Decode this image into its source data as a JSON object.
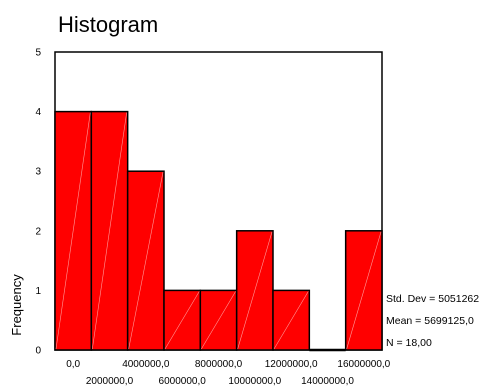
{
  "chart_data": {
    "type": "bar",
    "title": "Histogram",
    "xlabel": "",
    "ylabel": "Frequency",
    "ylim": [
      0,
      5
    ],
    "y_ticks": [
      "0",
      "1",
      "2",
      "3",
      "4",
      "5"
    ],
    "bin_width": 2000000,
    "bins": [
      {
        "start": -1000000,
        "end": 1000000,
        "value": 4
      },
      {
        "start": 1000000,
        "end": 3000000,
        "value": 4
      },
      {
        "start": 3000000,
        "end": 5000000,
        "value": 3
      },
      {
        "start": 5000000,
        "end": 7000000,
        "value": 1
      },
      {
        "start": 7000000,
        "end": 9000000,
        "value": 1
      },
      {
        "start": 9000000,
        "end": 11000000,
        "value": 2
      },
      {
        "start": 11000000,
        "end": 13000000,
        "value": 1
      },
      {
        "start": 13000000,
        "end": 15000000,
        "value": 0
      },
      {
        "start": 15000000,
        "end": 17000000,
        "value": 2
      }
    ],
    "x_ticks": [
      {
        "value": 0,
        "label": "0,0",
        "row": 1
      },
      {
        "value": 2000000,
        "label": "2000000,0",
        "row": 2
      },
      {
        "value": 4000000,
        "label": "4000000,0",
        "row": 1
      },
      {
        "value": 6000000,
        "label": "6000000,0",
        "row": 2
      },
      {
        "value": 8000000,
        "label": "8000000,0",
        "row": 1
      },
      {
        "value": 10000000,
        "label": "10000000,0",
        "row": 2
      },
      {
        "value": 12000000,
        "label": "12000000,0",
        "row": 1
      },
      {
        "value": 14000000,
        "label": "14000000,0",
        "row": 2
      },
      {
        "value": 16000000,
        "label": "16000000,0",
        "row": 1
      }
    ],
    "xlim": [
      -1000000,
      17000000
    ],
    "bar_color": "#ff0000",
    "stats": {
      "std_dev": "Std. Dev = 5051262",
      "mean": "Mean = 5699125,0",
      "n": "N = 18,00"
    }
  }
}
